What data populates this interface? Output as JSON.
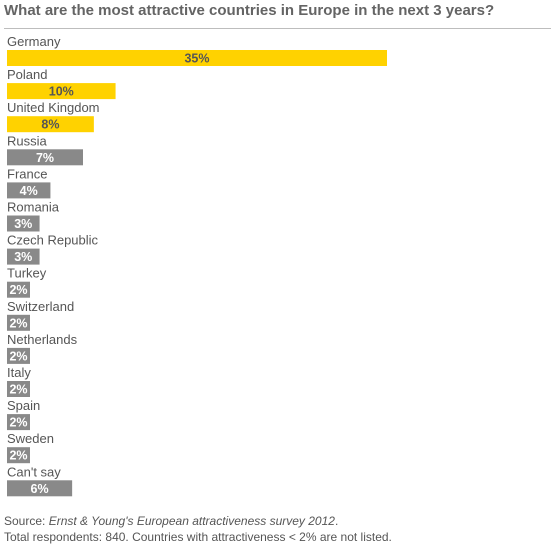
{
  "title": "What are the most attractive countries in Europe in the next 3 years?",
  "colors": {
    "highlight": "#FFD200",
    "default": "#898989",
    "highlight_text": "#555555",
    "default_text": "#ffffff"
  },
  "chart_data": {
    "type": "bar",
    "orientation": "horizontal",
    "categories": [
      "Germany",
      "Poland",
      "United Kingdom",
      "Russia",
      "France",
      "Romania",
      "Czech Republic",
      "Turkey",
      "Switzerland",
      "Netherlands",
      "Italy",
      "Spain",
      "Sweden",
      "Can't say"
    ],
    "values": [
      35,
      10,
      8,
      7,
      4,
      3,
      3,
      2,
      2,
      2,
      2,
      2,
      2,
      6
    ],
    "value_labels": [
      "35%",
      "10%",
      "8%",
      "7%",
      "4%",
      "3%",
      "3%",
      "2%",
      "2%",
      "2%",
      "2%",
      "2%",
      "2%",
      "6%"
    ],
    "highlighted": [
      true,
      true,
      true,
      false,
      false,
      false,
      false,
      false,
      false,
      false,
      false,
      false,
      false,
      false
    ],
    "xlim": [
      0,
      35
    ],
    "grid": false,
    "legend": "none"
  },
  "source": {
    "prefix": "Source: ",
    "italic": "Ernst & Young's European attractiveness survey 2012",
    "suffix": ".",
    "note": "Total respondents: 840. Countries with attractiveness < 2% are not listed."
  }
}
